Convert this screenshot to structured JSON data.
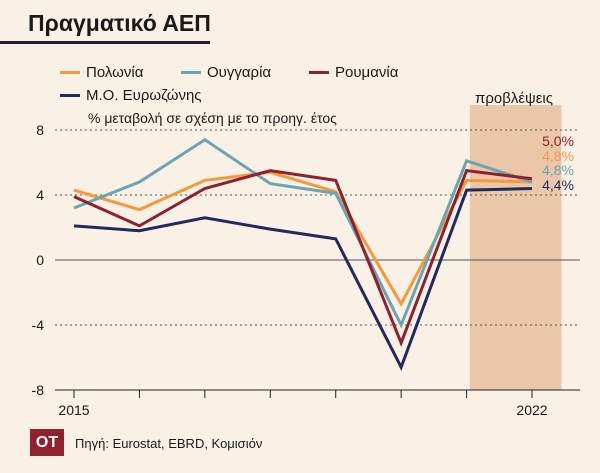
{
  "title": "Πραγματικό ΑΕΠ",
  "subtitle": "% μεταβολή σε σχέση με το προηγ. έτος",
  "forecast_label": "προβλέψεις",
  "source": "Πηγή: Eurostat, EBRD, Κομισιόν",
  "logo": "OT",
  "colors": {
    "background": "#f9f0e6",
    "forecast_band": "#e9c7a8"
  },
  "chart_data": {
    "type": "line",
    "x": [
      2015,
      2016,
      2017,
      2018,
      2019,
      2020,
      2021,
      2022
    ],
    "x_tick_labels": [
      "2015",
      "",
      "",
      "",
      "",
      "",
      "",
      "2022"
    ],
    "y_ticks": [
      8,
      4,
      0,
      -4,
      -8
    ],
    "y_tick_labels": [
      "8",
      "4",
      "0",
      "-4",
      "-8"
    ],
    "ylim": [
      -8,
      8
    ],
    "forecast_from": 2021,
    "series": [
      {
        "name": "Πολωνία",
        "color": "#f39a3e",
        "values": [
          4.3,
          3.1,
          4.9,
          5.4,
          4.2,
          -2.7,
          4.9,
          4.8
        ],
        "end_label": "4,8%"
      },
      {
        "name": "Ουγγαρία",
        "color": "#6aa6b0",
        "values": [
          3.2,
          4.8,
          7.4,
          4.7,
          4.1,
          -4.0,
          6.1,
          4.8
        ],
        "end_label": "4,8%"
      },
      {
        "name": "Ρουμανία",
        "color": "#8f2030",
        "values": [
          3.9,
          2.1,
          4.4,
          5.5,
          4.9,
          -5.1,
          5.5,
          5.0
        ],
        "end_label": "5,0%"
      },
      {
        "name": "Μ.Ο. Ευρωζώνης",
        "color": "#222a5c",
        "values": [
          2.1,
          1.8,
          2.6,
          1.9,
          1.3,
          -6.6,
          4.3,
          4.4
        ],
        "end_label": "4,4%"
      }
    ]
  }
}
